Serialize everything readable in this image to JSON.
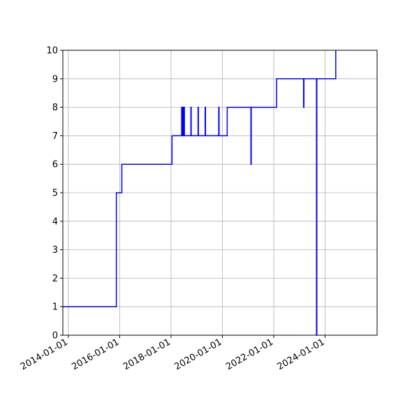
{
  "chart_data": {
    "type": "line",
    "title": "",
    "xlabel": "",
    "ylabel": "",
    "x_is_date": true,
    "xlim": [
      "2013-10-15",
      "2026-01-10"
    ],
    "ylim": [
      0,
      10
    ],
    "grid": true,
    "legend": "none",
    "line_color": "#0000ff",
    "x_ticks": [
      "2014-01-01",
      "2016-01-01",
      "2018-01-01",
      "2020-01-01",
      "2022-01-01",
      "2024-01-01"
    ],
    "y_ticks": [
      "0",
      "1",
      "2",
      "3",
      "4",
      "5",
      "6",
      "7",
      "8",
      "9",
      "10"
    ],
    "series": [
      {
        "points": [
          [
            "2013-10-15",
            1
          ],
          [
            "2015-11-15",
            1
          ],
          [
            "2015-11-15",
            5
          ],
          [
            "2016-02-01",
            5
          ],
          [
            "2016-02-01",
            6
          ],
          [
            "2018-01-15",
            6
          ],
          [
            "2018-01-15",
            7
          ],
          [
            "2018-06-01",
            7
          ],
          [
            "2018-06-01",
            8
          ],
          [
            "2018-06-10",
            8
          ],
          [
            "2018-06-10",
            7
          ],
          [
            "2018-06-20",
            7
          ],
          [
            "2018-06-20",
            8
          ],
          [
            "2018-06-28",
            8
          ],
          [
            "2018-06-28",
            7
          ],
          [
            "2018-07-05",
            7
          ],
          [
            "2018-07-05",
            8
          ],
          [
            "2018-07-10",
            8
          ],
          [
            "2018-07-10",
            7
          ],
          [
            "2018-10-10",
            7
          ],
          [
            "2018-10-10",
            8
          ],
          [
            "2018-10-15",
            8
          ],
          [
            "2018-10-15",
            7
          ],
          [
            "2019-01-20",
            7
          ],
          [
            "2019-01-20",
            8
          ],
          [
            "2019-01-25",
            8
          ],
          [
            "2019-01-25",
            7
          ],
          [
            "2019-05-01",
            7
          ],
          [
            "2019-05-01",
            8
          ],
          [
            "2019-05-06",
            8
          ],
          [
            "2019-05-06",
            7
          ],
          [
            "2019-11-10",
            7
          ],
          [
            "2019-11-10",
            8
          ],
          [
            "2019-11-15",
            8
          ],
          [
            "2019-11-15",
            7
          ],
          [
            "2020-03-10",
            7
          ],
          [
            "2020-03-10",
            8
          ],
          [
            "2021-02-10",
            8
          ],
          [
            "2021-02-10",
            6
          ],
          [
            "2021-02-15",
            6
          ],
          [
            "2021-02-15",
            8
          ],
          [
            "2022-02-10",
            8
          ],
          [
            "2022-02-10",
            9
          ],
          [
            "2023-03-01",
            9
          ],
          [
            "2023-03-01",
            8
          ],
          [
            "2023-03-06",
            8
          ],
          [
            "2023-03-06",
            9
          ],
          [
            "2023-09-01",
            9
          ],
          [
            "2023-09-01",
            0
          ],
          [
            "2023-09-06",
            0
          ],
          [
            "2023-09-06",
            9
          ],
          [
            "2024-06-01",
            9
          ],
          [
            "2024-06-01",
            10
          ]
        ]
      }
    ]
  }
}
